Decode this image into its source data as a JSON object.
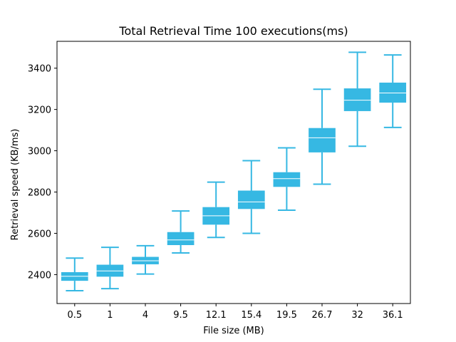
{
  "chart_data": {
    "type": "box",
    "title": "Total Retrieval Time 100 executions(ms)",
    "xlabel": "File size (MB)",
    "ylabel": "Retrieval speed (KB/ms)",
    "ylim": [
      2260,
      3530
    ],
    "yticks": [
      2400,
      2600,
      2800,
      3000,
      3200,
      3400
    ],
    "grid": false,
    "color": "#36b8e3",
    "median_color": "#ffffff",
    "categories": [
      "0.5",
      "1",
      "4",
      "9.5",
      "12.1",
      "15.4",
      "19.5",
      "26.7",
      "32",
      "36.1"
    ],
    "boxes": [
      {
        "whislo": 2322,
        "q1": 2370,
        "med": 2392,
        "q3": 2412,
        "whishi": 2480
      },
      {
        "whislo": 2332,
        "q1": 2390,
        "med": 2418,
        "q3": 2448,
        "whishi": 2532
      },
      {
        "whislo": 2403,
        "q1": 2450,
        "med": 2467,
        "q3": 2486,
        "whishi": 2540
      },
      {
        "whislo": 2505,
        "q1": 2543,
        "med": 2568,
        "q3": 2606,
        "whishi": 2708
      },
      {
        "whislo": 2580,
        "q1": 2642,
        "med": 2685,
        "q3": 2727,
        "whishi": 2848
      },
      {
        "whislo": 2600,
        "q1": 2718,
        "med": 2752,
        "q3": 2807,
        "whishi": 2952
      },
      {
        "whislo": 2712,
        "q1": 2825,
        "med": 2865,
        "q3": 2896,
        "whishi": 3014
      },
      {
        "whislo": 2838,
        "q1": 2992,
        "med": 3063,
        "q3": 3110,
        "whishi": 3298
      },
      {
        "whislo": 3022,
        "q1": 3192,
        "med": 3245,
        "q3": 3302,
        "whishi": 3477
      },
      {
        "whislo": 3113,
        "q1": 3233,
        "med": 3280,
        "q3": 3330,
        "whishi": 3464
      }
    ]
  }
}
